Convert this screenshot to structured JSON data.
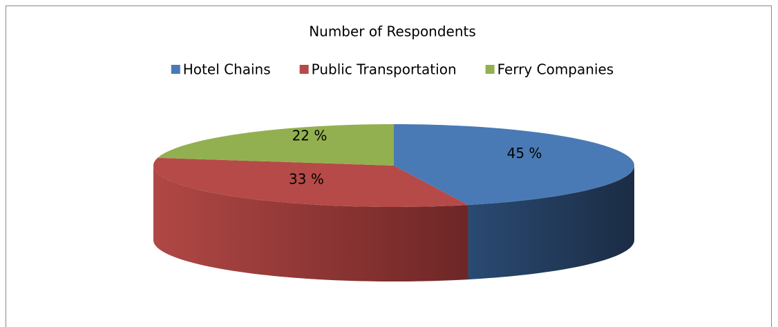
{
  "chart_data": {
    "type": "pie3d",
    "title": "Number of Respondents",
    "categories": [
      "Hotel Chains",
      "Public Transportation",
      "Ferry Companies"
    ],
    "values": [
      45,
      33,
      22
    ],
    "value_labels": [
      "45 %",
      "33 %",
      "22 %"
    ],
    "colors": [
      "#4a7ab5",
      "#b54a48",
      "#93b050"
    ],
    "legend": "top"
  }
}
